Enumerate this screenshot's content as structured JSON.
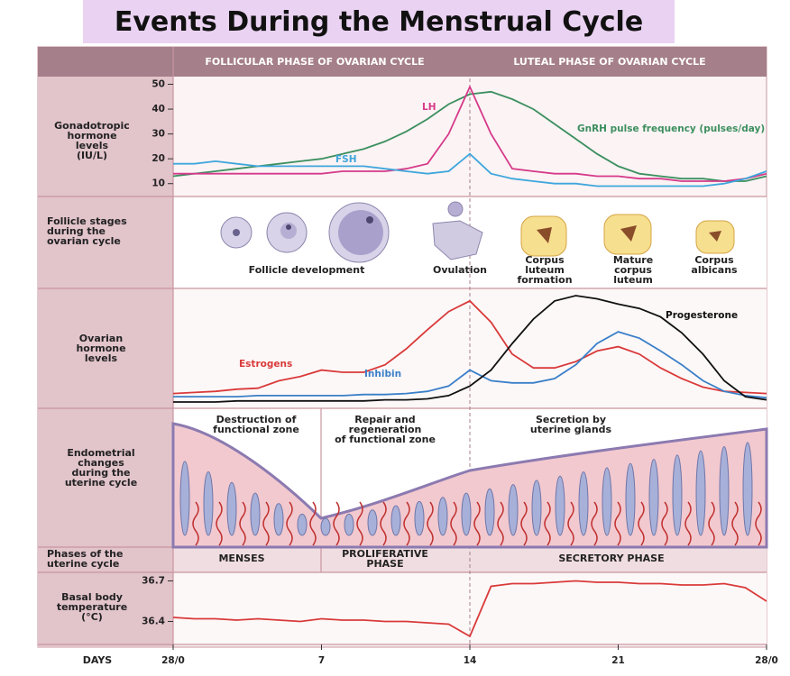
{
  "title": "Events During the Menstrual Cycle",
  "phase_header": [
    "FOLLICULAR PHASE OF OVARIAN CYCLE",
    "LUTEAL PHASE OF OVARIAN CYCLE"
  ],
  "row_labels": {
    "gonadotropic": [
      "Gonadotropic",
      "hormone",
      "levels",
      "(IU/L)"
    ],
    "follicle": [
      "Follicle stages",
      "during the",
      "ovarian cycle"
    ],
    "ovarian": [
      "Ovarian",
      "hormone",
      "levels"
    ],
    "endometrial": [
      "Endometrial",
      "changes",
      "during the",
      "uterine cycle"
    ],
    "uterine_phases": [
      "Phases of the",
      "uterine cycle"
    ],
    "basal": [
      "Basal body",
      "temperature",
      "(°C)"
    ],
    "days": "DAYS"
  },
  "follicle_stages": [
    [
      "Follicle development"
    ],
    [
      "Ovulation"
    ],
    [
      "Corpus",
      "luteum",
      "formation"
    ],
    [
      "Mature",
      "corpus",
      "luteum"
    ],
    [
      "Corpus",
      "albicans"
    ]
  ],
  "endometrium_labels": [
    [
      "Destruction of",
      "functional zone"
    ],
    [
      "Repair and",
      "regeneration",
      "of functional zone"
    ],
    [
      "Secretion by",
      "uterine glands"
    ]
  ],
  "uterine_phases": [
    [
      "MENSES"
    ],
    [
      "PROLIFERATIVE",
      "PHASE"
    ],
    [
      "SECRETORY PHASE"
    ]
  ],
  "chart_data": [
    {
      "type": "line",
      "title": "Gonadotropic hormone levels",
      "x": [
        0,
        1,
        2,
        3,
        4,
        5,
        6,
        7,
        8,
        9,
        10,
        11,
        12,
        13,
        14,
        15,
        16,
        17,
        18,
        19,
        20,
        21,
        22,
        23,
        24,
        25,
        26,
        27,
        28
      ],
      "ylim": [
        7,
        52
      ],
      "yticks": [
        10,
        20,
        30,
        40,
        50
      ],
      "series": [
        {
          "name": "GnRH pulse frequency (pulses/day)",
          "color": "#3c8f5f",
          "values": [
            13,
            14,
            15,
            16,
            17,
            18,
            19,
            20,
            22,
            24,
            27,
            31,
            36,
            42,
            46,
            47,
            44,
            40,
            34,
            28,
            22,
            17,
            14,
            13,
            12,
            12,
            11,
            11,
            13
          ]
        },
        {
          "name": "LH",
          "color": "#d63a8a",
          "values": [
            14,
            14,
            14,
            14,
            14,
            14,
            14,
            14,
            15,
            15,
            15,
            16,
            18,
            30,
            49,
            30,
            16,
            15,
            14,
            14,
            13,
            13,
            12,
            12,
            11,
            11,
            11,
            12,
            14
          ]
        },
        {
          "name": "FSH",
          "color": "#3fa6dc",
          "values": [
            18,
            18,
            19,
            18,
            17,
            17,
            17,
            17,
            17,
            17,
            16,
            15,
            14,
            15,
            22,
            14,
            12,
            11,
            10,
            10,
            9,
            9,
            9,
            9,
            9,
            9,
            10,
            12,
            15
          ]
        }
      ]
    },
    {
      "type": "line",
      "title": "Ovarian hormone levels",
      "x": [
        0,
        1,
        2,
        3,
        4,
        5,
        6,
        7,
        8,
        9,
        10,
        11,
        12,
        13,
        14,
        15,
        16,
        17,
        18,
        19,
        20,
        21,
        22,
        23,
        24,
        25,
        26,
        27,
        28
      ],
      "series": [
        {
          "name": "Estrogens",
          "color": "#d93a3a",
          "values": [
            8,
            9,
            10,
            12,
            13,
            20,
            24,
            30,
            28,
            28,
            35,
            50,
            68,
            85,
            95,
            75,
            45,
            32,
            32,
            38,
            48,
            52,
            45,
            32,
            22,
            14,
            10,
            9,
            8
          ]
        },
        {
          "name": "Inhibin",
          "color": "#3a7fc8",
          "values": [
            5,
            5,
            5,
            5,
            6,
            6,
            6,
            6,
            6,
            7,
            7,
            8,
            10,
            15,
            30,
            20,
            18,
            18,
            22,
            35,
            55,
            66,
            60,
            48,
            35,
            20,
            10,
            6,
            4
          ]
        },
        {
          "name": "Progesterone",
          "color": "#111111",
          "values": [
            0,
            0,
            0,
            1,
            1,
            1,
            1,
            1,
            1,
            1,
            2,
            2,
            3,
            6,
            15,
            30,
            55,
            78,
            95,
            100,
            97,
            92,
            88,
            80,
            65,
            45,
            20,
            5,
            2
          ]
        }
      ]
    },
    {
      "type": "line",
      "title": "Basal body temperature",
      "x": [
        0,
        1,
        2,
        3,
        4,
        5,
        6,
        7,
        8,
        9,
        10,
        11,
        12,
        13,
        14,
        15,
        16,
        17,
        18,
        19,
        20,
        21,
        22,
        23,
        24,
        25,
        26,
        27,
        28
      ],
      "xticks": [
        {
          "value": 0,
          "label": "28/0"
        },
        7,
        14,
        21,
        {
          "value": 28,
          "label": "28/0"
        }
      ],
      "ylim": [
        36.25,
        36.75
      ],
      "yticks": [
        36.4,
        36.7
      ],
      "series": [
        {
          "name": "Basal body temperature",
          "color": "#d93a3a",
          "values": [
            36.43,
            36.42,
            36.42,
            36.41,
            36.42,
            36.41,
            36.4,
            36.42,
            36.41,
            36.41,
            36.4,
            36.4,
            36.39,
            36.38,
            36.29,
            36.66,
            36.68,
            36.68,
            36.69,
            36.7,
            36.69,
            36.69,
            36.68,
            36.68,
            36.67,
            36.67,
            36.68,
            36.65,
            36.55
          ]
        }
      ]
    }
  ]
}
